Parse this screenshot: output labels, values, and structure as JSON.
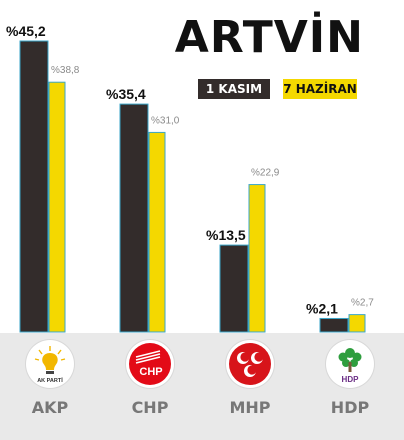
{
  "title": "ARTVİN",
  "legend": {
    "nov": "1 KASIM",
    "jun": "7 HAZİRAN"
  },
  "colors": {
    "nov": "#332c2b",
    "jun": "#f4d800",
    "outline": "#3aa6c9"
  },
  "logos": [
    {
      "icon": "akp-lightbulb-icon",
      "text": "AK PARTİ"
    },
    {
      "icon": "chp-six-arrows-icon",
      "text": "CHP"
    },
    {
      "icon": "mhp-three-crescents-icon"
    },
    {
      "icon": "hdp-tree-icon",
      "text": "HDP"
    }
  ],
  "chart_data": {
    "type": "bar",
    "categories": [
      "AKP",
      "CHP",
      "MHP",
      "HDP"
    ],
    "series": [
      {
        "name": "1 KASIM",
        "values": [
          45.2,
          35.4,
          13.5,
          2.1
        ],
        "labels": [
          "%45,2",
          "%35,4",
          "%13,5",
          "%2,1"
        ]
      },
      {
        "name": "7 HAZİRAN",
        "values": [
          38.8,
          31.0,
          22.9,
          2.7
        ],
        "labels": [
          "%38,8",
          "%31,0",
          "%22,9",
          "%2,7"
        ]
      }
    ],
    "title": "ARTVİN",
    "ylim": [
      0,
      50
    ],
    "grid": false,
    "legend_position": "top-right"
  }
}
